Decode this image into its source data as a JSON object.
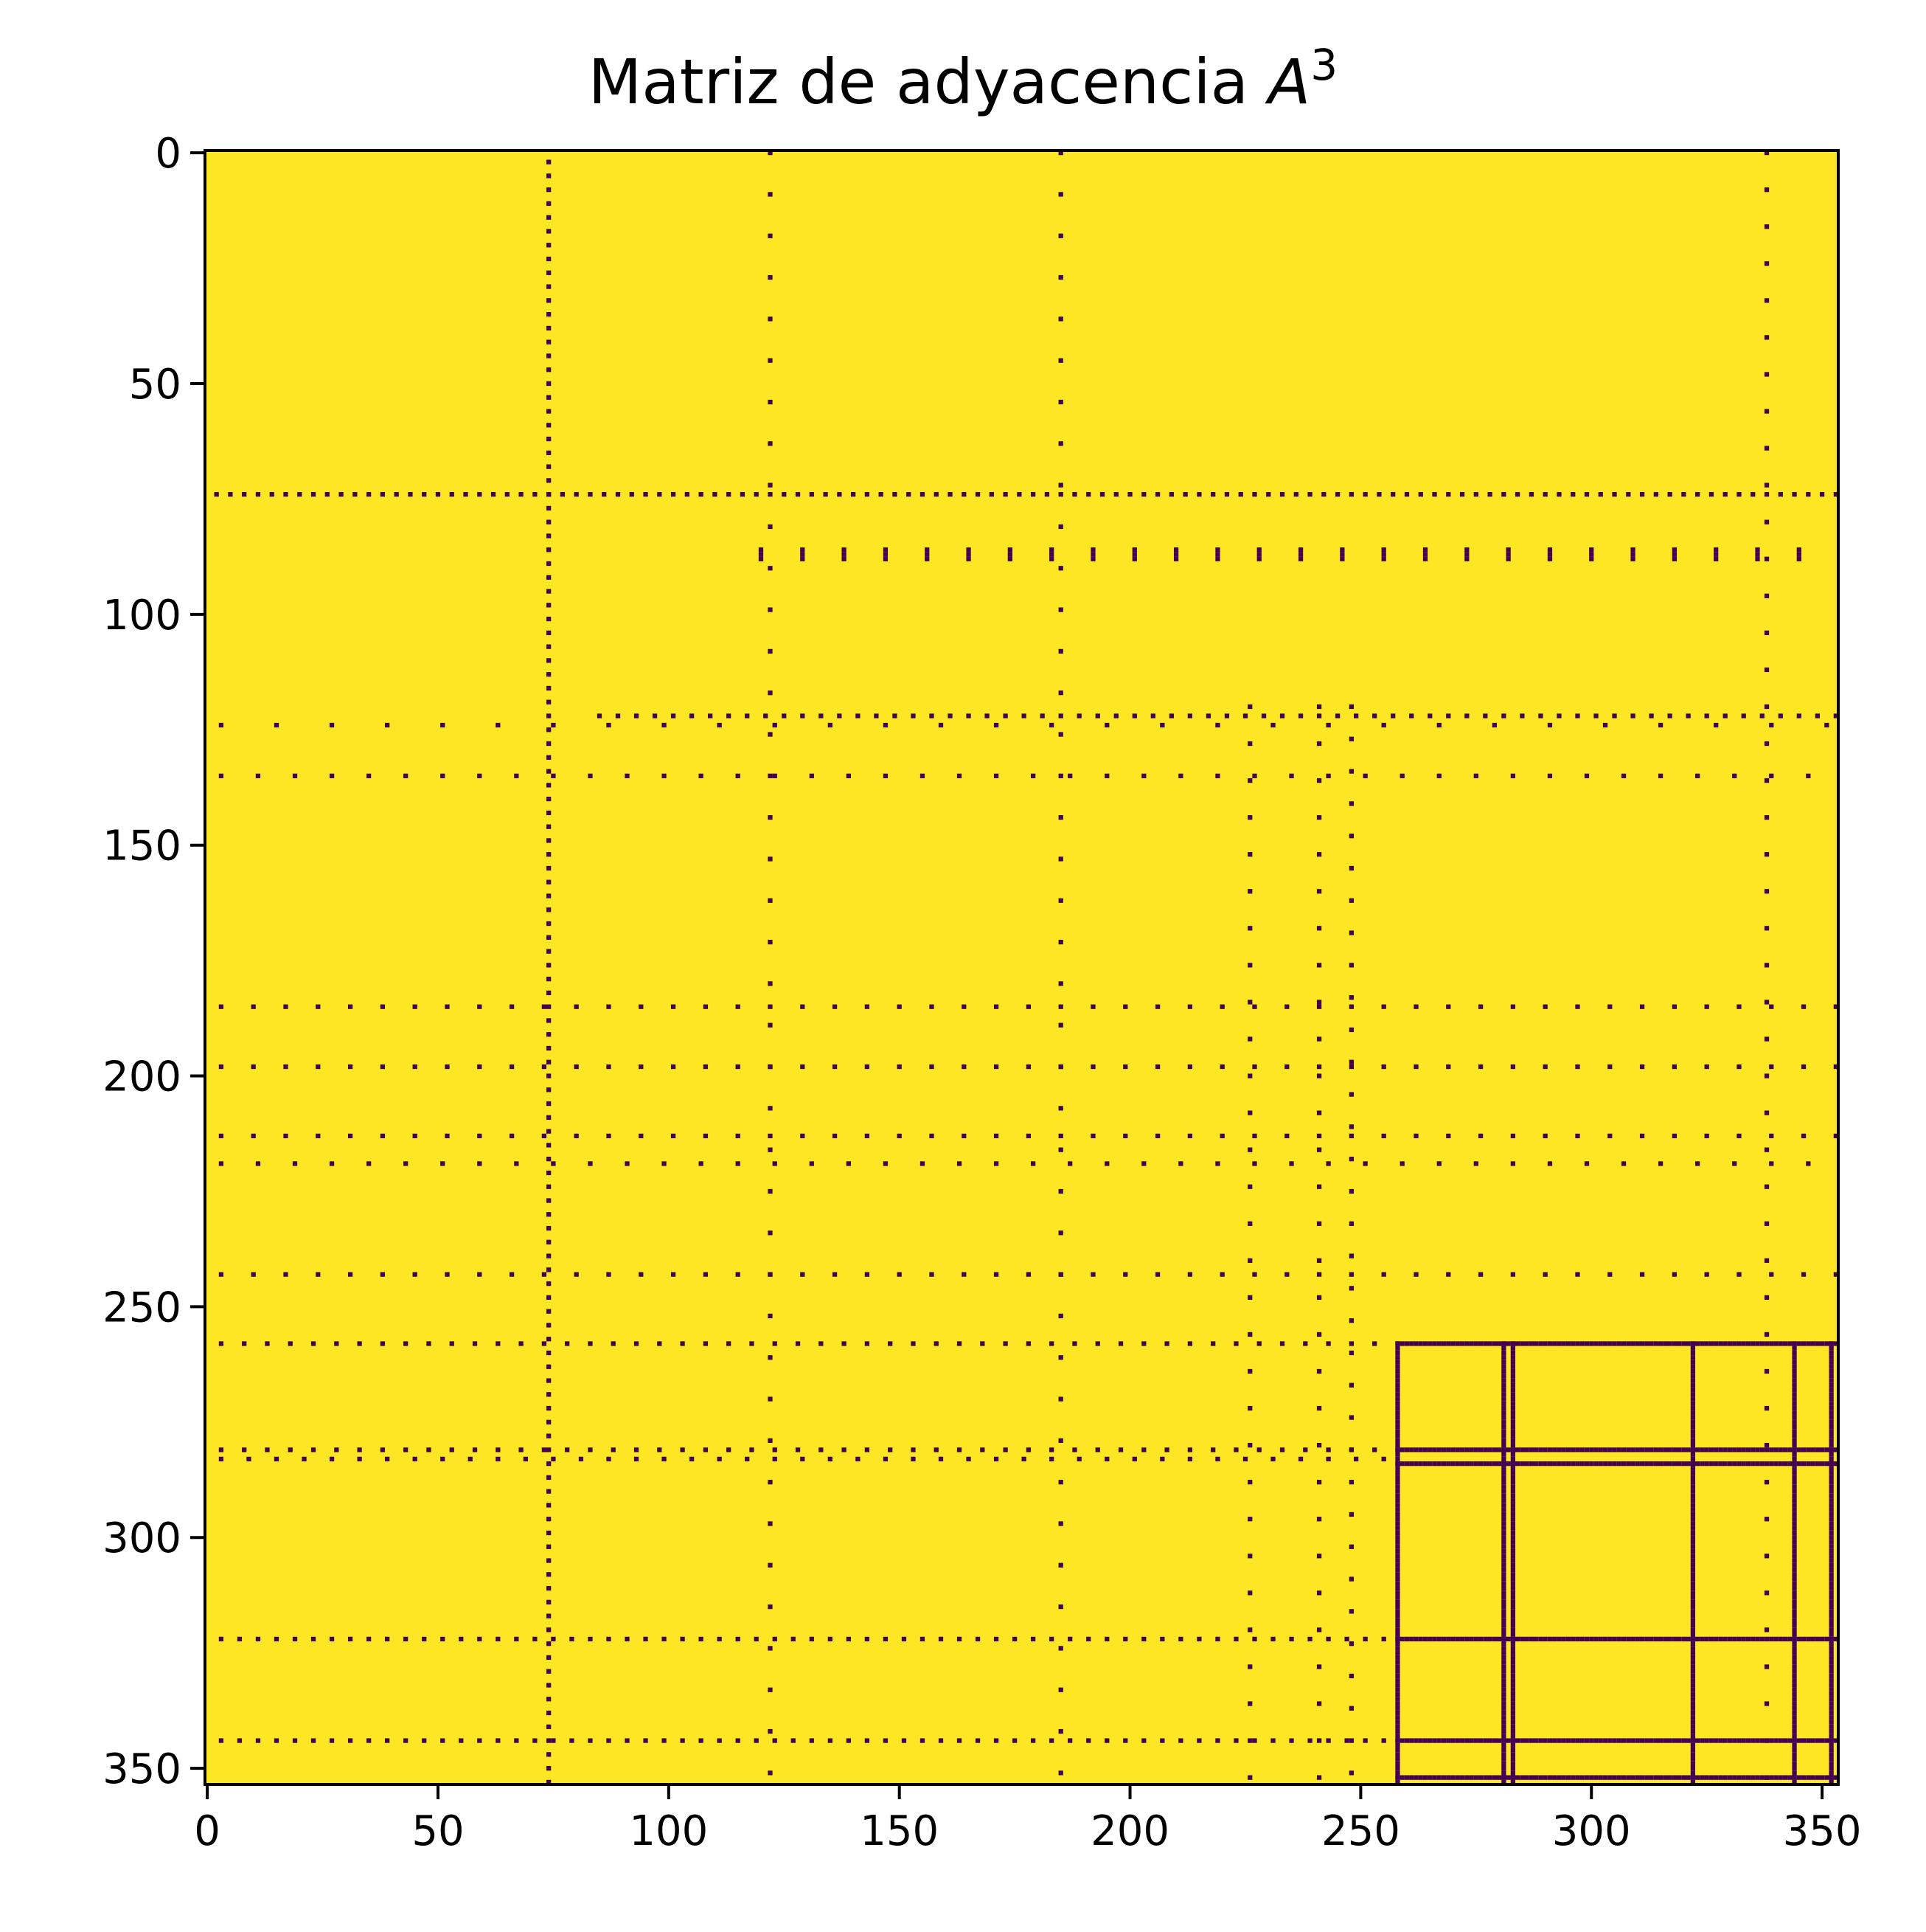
{
  "chart_data": {
    "type": "heatmap",
    "title_text": "Matriz de adyacencia ",
    "title_symbol": "A",
    "title_exponent": "3",
    "n": 354,
    "xlim": [
      0,
      354
    ],
    "ylim": [
      354,
      0
    ],
    "xticks": [
      0,
      50,
      100,
      150,
      200,
      250,
      300,
      350
    ],
    "yticks": [
      0,
      50,
      100,
      150,
      200,
      250,
      300,
      350
    ],
    "colors": {
      "one": "#fde725",
      "zero": "#440154"
    },
    "rows": [
      {
        "r": 74,
        "from": 2,
        "to": 354,
        "step": 3
      },
      {
        "r": 86,
        "from": 120,
        "to": 354,
        "step": 9
      },
      {
        "r": 87,
        "from": 120,
        "to": 354,
        "step": 9
      },
      {
        "r": 88,
        "from": 120,
        "to": 354,
        "step": 9
      },
      {
        "r": 122,
        "from": 85,
        "to": 354,
        "step": 4
      },
      {
        "r": 124,
        "from": 3,
        "to": 354,
        "step": 12
      },
      {
        "r": 135,
        "from": 3,
        "to": 354,
        "step": 8
      },
      {
        "r": 185,
        "from": 3,
        "to": 354,
        "step": 7
      },
      {
        "r": 198,
        "from": 3,
        "to": 354,
        "step": 7
      },
      {
        "r": 213,
        "from": 3,
        "to": 354,
        "step": 7
      },
      {
        "r": 219,
        "from": 3,
        "to": 354,
        "step": 8
      },
      {
        "r": 243,
        "from": 3,
        "to": 354,
        "step": 7
      },
      {
        "r": 258,
        "from": 3,
        "to": 258,
        "step": 5
      },
      {
        "r": 258,
        "from": 258,
        "to": 354,
        "step": 1
      },
      {
        "r": 281,
        "from": 3,
        "to": 258,
        "step": 5
      },
      {
        "r": 281,
        "from": 258,
        "to": 354,
        "step": 1
      },
      {
        "r": 283,
        "from": 3,
        "to": 258,
        "step": 6
      },
      {
        "r": 284,
        "from": 258,
        "to": 354,
        "step": 1
      },
      {
        "r": 322,
        "from": 3,
        "to": 258,
        "step": 4
      },
      {
        "r": 322,
        "from": 258,
        "to": 354,
        "step": 1
      },
      {
        "r": 344,
        "from": 3,
        "to": 258,
        "step": 4
      },
      {
        "r": 344,
        "from": 258,
        "to": 354,
        "step": 1
      },
      {
        "r": 352,
        "from": 258,
        "to": 354,
        "step": 1
      }
    ],
    "cols": [
      {
        "c": 74,
        "from": 2,
        "to": 354,
        "step": 3
      },
      {
        "c": 258,
        "from": 258,
        "to": 354,
        "step": 1
      },
      {
        "c": 281,
        "from": 258,
        "to": 354,
        "step": 1
      },
      {
        "c": 283,
        "from": 258,
        "to": 354,
        "step": 1
      },
      {
        "c": 322,
        "from": 258,
        "to": 354,
        "step": 1
      },
      {
        "c": 344,
        "from": 258,
        "to": 354,
        "step": 1
      },
      {
        "c": 352,
        "from": 258,
        "to": 354,
        "step": 1
      },
      {
        "c": 122,
        "from": 0,
        "to": 354,
        "step": 9
      },
      {
        "c": 185,
        "from": 0,
        "to": 354,
        "step": 9
      },
      {
        "c": 226,
        "from": 120,
        "to": 354,
        "step": 8
      },
      {
        "c": 241,
        "from": 120,
        "to": 354,
        "step": 8
      },
      {
        "c": 248,
        "from": 120,
        "to": 354,
        "step": 7
      },
      {
        "c": 338,
        "from": 0,
        "to": 354,
        "step": 8
      }
    ]
  }
}
